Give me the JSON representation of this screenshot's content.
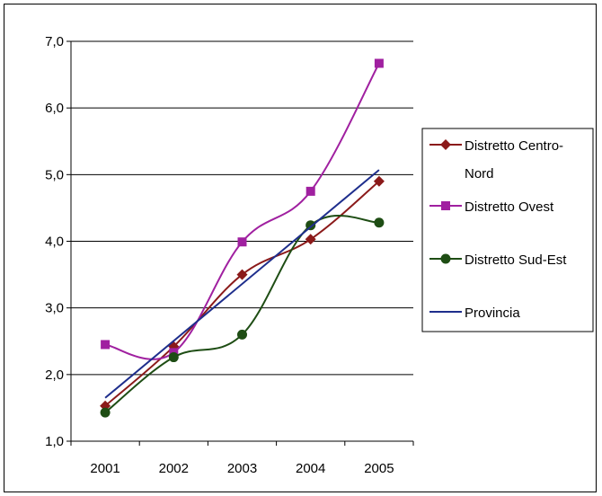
{
  "chart_data": {
    "type": "line",
    "title": "",
    "xlabel": "",
    "ylabel": "",
    "categories": [
      "2001",
      "2002",
      "2003",
      "2004",
      "2005"
    ],
    "ylim": [
      1.0,
      7.0
    ],
    "yticks": [
      "1,0",
      "2,0",
      "3,0",
      "4,0",
      "5,0",
      "6,0",
      "7,0"
    ],
    "grid": true,
    "legend_position": "right",
    "series": [
      {
        "name": "Distretto Centro-Nord",
        "values": [
          1.53,
          2.42,
          3.5,
          4.03,
          4.9
        ],
        "color": "#8B1A1A",
        "marker": "diamond",
        "smooth": true
      },
      {
        "name": "Distretto Ovest",
        "values": [
          2.45,
          2.33,
          3.99,
          4.75,
          6.67
        ],
        "color": "#A020A0",
        "marker": "square",
        "smooth": true
      },
      {
        "name": "Distretto Sud-Est",
        "values": [
          1.43,
          2.26,
          2.6,
          4.24,
          4.28
        ],
        "color": "#1E4D14",
        "marker": "circle",
        "smooth": true
      },
      {
        "name": "Provincia",
        "values": [
          1.65,
          2.43,
          3.37,
          4.25,
          5.07
        ],
        "color": "#1E2E8C",
        "marker": "none",
        "smooth": false
      }
    ]
  },
  "legend": {
    "items": [
      {
        "line1": "Distretto Centro-",
        "line2": "Nord"
      },
      {
        "line1": "Distretto Ovest",
        "line2": ""
      },
      {
        "line1": "Distretto Sud-Est",
        "line2": ""
      },
      {
        "line1": "Provincia",
        "line2": ""
      }
    ]
  }
}
